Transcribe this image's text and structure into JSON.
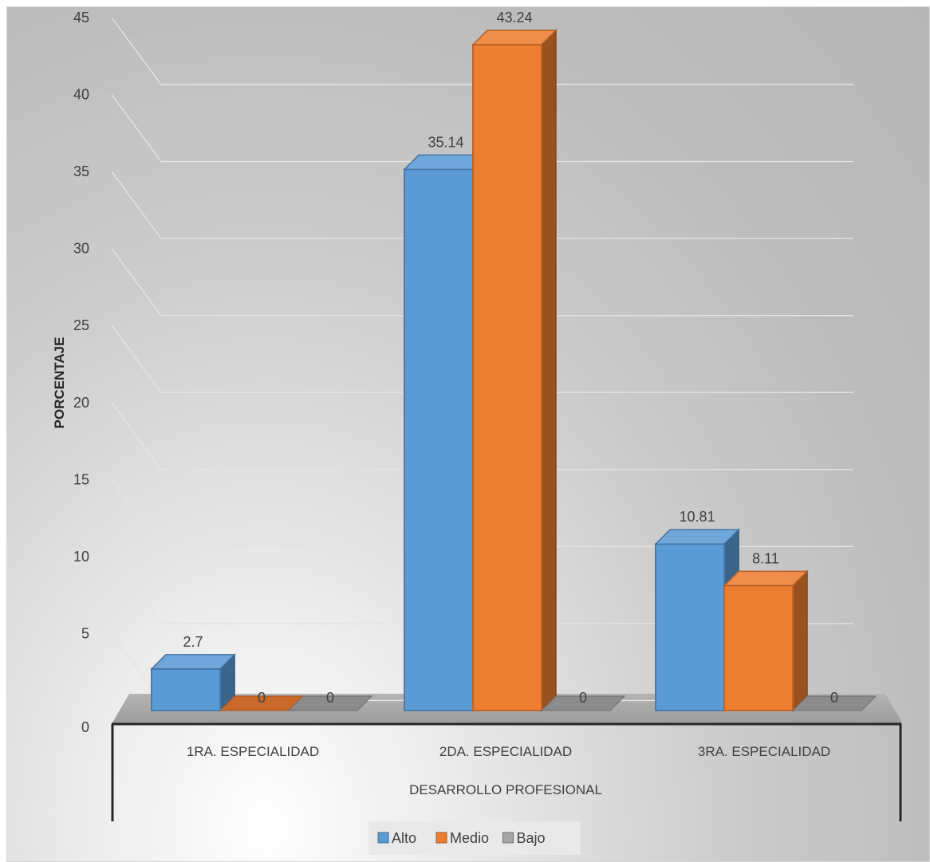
{
  "chart_data": {
    "type": "bar",
    "xlabel": "DESARROLLO PROFESIONAL",
    "ylabel": "PORCENTAJE",
    "ylim": [
      0,
      45
    ],
    "yticks": [
      0,
      5,
      10,
      15,
      20,
      25,
      30,
      35,
      40,
      45
    ],
    "categories": [
      "1RA. ESPECIALIDAD",
      "2DA. ESPECIALIDAD",
      "3RA. ESPECIALIDAD"
    ],
    "series": [
      {
        "name": "Alto",
        "values": [
          2.7,
          35.14,
          10.81
        ],
        "color": "#5B9BD5"
      },
      {
        "name": "Medio",
        "values": [
          0,
          43.24,
          8.11
        ],
        "color": "#ED7D31"
      },
      {
        "name": "Bajo",
        "values": [
          0,
          0,
          0
        ],
        "color": "#A5A5A5"
      }
    ],
    "data_labels": [
      [
        "2.7",
        "35.14",
        "10.81"
      ],
      [
        "0",
        "43.24",
        "8.11"
      ],
      [
        "0",
        "0",
        "0"
      ]
    ],
    "grid": true,
    "legend": "bottom",
    "style": "3d-clustered-column"
  }
}
